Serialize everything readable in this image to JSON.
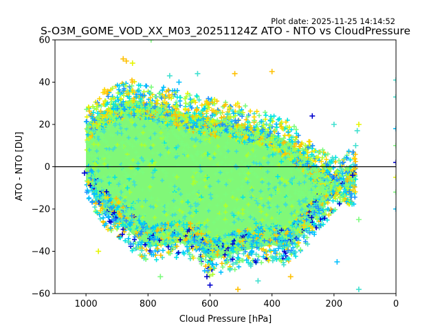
{
  "chart_data": {
    "type": "scatter",
    "title": "S-O3M_GOME_VOD_XX_M03_20251124Z ATO - NTO vs CloudPressure",
    "subtitle": "Plot date: 2025-11-25 14:14:52",
    "xlabel": "Cloud Pressure [hPa]",
    "ylabel": "ATO - NTO [DU]",
    "xlim": [
      1100,
      0
    ],
    "ylim": [
      -60,
      60
    ],
    "x_inverted": true,
    "xticks": [
      1000,
      800,
      600,
      400,
      200,
      0
    ],
    "xtick_labels": [
      "1000",
      "800",
      "600",
      "400",
      "200",
      "0"
    ],
    "yticks": [
      -60,
      -40,
      -20,
      0,
      20,
      40,
      60
    ],
    "ytick_labels": [
      "−60",
      "−40",
      "−20",
      "0",
      "20",
      "40",
      "60"
    ],
    "reference_line": {
      "y": 0,
      "color": "#000000"
    },
    "marker": "+",
    "grid": false,
    "legend": "none",
    "colormap": [
      "#0000cd",
      "#1e90ff",
      "#00bfff",
      "#00e5e5",
      "#40e0d0",
      "#7cfc7c",
      "#adff2f",
      "#e5f500",
      "#ffd700",
      "#ffc000"
    ],
    "bulk_color": "#80f878",
    "point_cloud": {
      "core": {
        "x_range": [
          1000,
          130
        ],
        "y_mean": -3,
        "y_spread_low": -25,
        "y_spread_high": 20
      },
      "upper_envelope": [
        [
          1000,
          30
        ],
        [
          950,
          36
        ],
        [
          900,
          40
        ],
        [
          850,
          42
        ],
        [
          800,
          40
        ],
        [
          700,
          36
        ],
        [
          600,
          33
        ],
        [
          500,
          30
        ],
        [
          400,
          26
        ],
        [
          350,
          22
        ],
        [
          300,
          16
        ],
        [
          250,
          10
        ],
        [
          200,
          5
        ],
        [
          150,
          0
        ]
      ],
      "lower_envelope": [
        [
          1000,
          -15
        ],
        [
          950,
          -28
        ],
        [
          900,
          -33
        ],
        [
          850,
          -40
        ],
        [
          800,
          -46
        ],
        [
          700,
          -44
        ],
        [
          650,
          -45
        ],
        [
          600,
          -52
        ],
        [
          500,
          -48
        ],
        [
          400,
          -45
        ],
        [
          350,
          -47
        ],
        [
          300,
          -40
        ],
        [
          250,
          -30
        ],
        [
          200,
          -22
        ],
        [
          150,
          -10
        ]
      ],
      "outliers": [
        {
          "x": 880,
          "y": 51,
          "c": "#ffc000"
        },
        {
          "x": 870,
          "y": 50,
          "c": "#ffc000"
        },
        {
          "x": 850,
          "y": 49,
          "c": "#e5f500"
        },
        {
          "x": 790,
          "y": 60,
          "c": "#7cfc7c"
        },
        {
          "x": 730,
          "y": 43,
          "c": "#40e0d0"
        },
        {
          "x": 700,
          "y": 40,
          "c": "#00bfff"
        },
        {
          "x": 640,
          "y": 44,
          "c": "#40e0d0"
        },
        {
          "x": 520,
          "y": 44,
          "c": "#ffc000"
        },
        {
          "x": 400,
          "y": 45,
          "c": "#ffc000"
        },
        {
          "x": 270,
          "y": 24,
          "c": "#0000cd"
        },
        {
          "x": 200,
          "y": 20,
          "c": "#40e0d0"
        },
        {
          "x": 120,
          "y": 20,
          "c": "#e5f500"
        },
        {
          "x": 125,
          "y": 17,
          "c": "#40e0d0"
        },
        {
          "x": 130,
          "y": 10,
          "c": "#40e0d0"
        },
        {
          "x": 140,
          "y": -4,
          "c": "#0000cd"
        },
        {
          "x": 120,
          "y": -25,
          "c": "#7cfc7c"
        },
        {
          "x": 190,
          "y": -45,
          "c": "#00bfff"
        },
        {
          "x": 120,
          "y": -58,
          "c": "#40e0d0"
        },
        {
          "x": 510,
          "y": -58,
          "c": "#ffc000"
        },
        {
          "x": 600,
          "y": -56,
          "c": "#0000cd"
        },
        {
          "x": 610,
          "y": -52,
          "c": "#0000cd"
        },
        {
          "x": 760,
          "y": -52,
          "c": "#7cfc7c"
        },
        {
          "x": 960,
          "y": -40,
          "c": "#e5f500"
        },
        {
          "x": 340,
          "y": -52,
          "c": "#ffc000"
        },
        {
          "x": 445,
          "y": -54,
          "c": "#40e0d0"
        },
        {
          "x": 1005,
          "y": -3,
          "c": "#0000cd"
        },
        {
          "x": 0,
          "y": 41,
          "c": "#40e0d0"
        },
        {
          "x": 0,
          "y": 33,
          "c": "#40e0d0"
        },
        {
          "x": 0,
          "y": 18,
          "c": "#00bfff"
        },
        {
          "x": 0,
          "y": 10,
          "c": "#7cfc7c"
        },
        {
          "x": 0,
          "y": 2,
          "c": "#0000cd"
        },
        {
          "x": 0,
          "y": -5,
          "c": "#e5f500"
        },
        {
          "x": 0,
          "y": -12,
          "c": "#7cfc7c"
        },
        {
          "x": 0,
          "y": -20,
          "c": "#00bfff"
        }
      ]
    }
  }
}
